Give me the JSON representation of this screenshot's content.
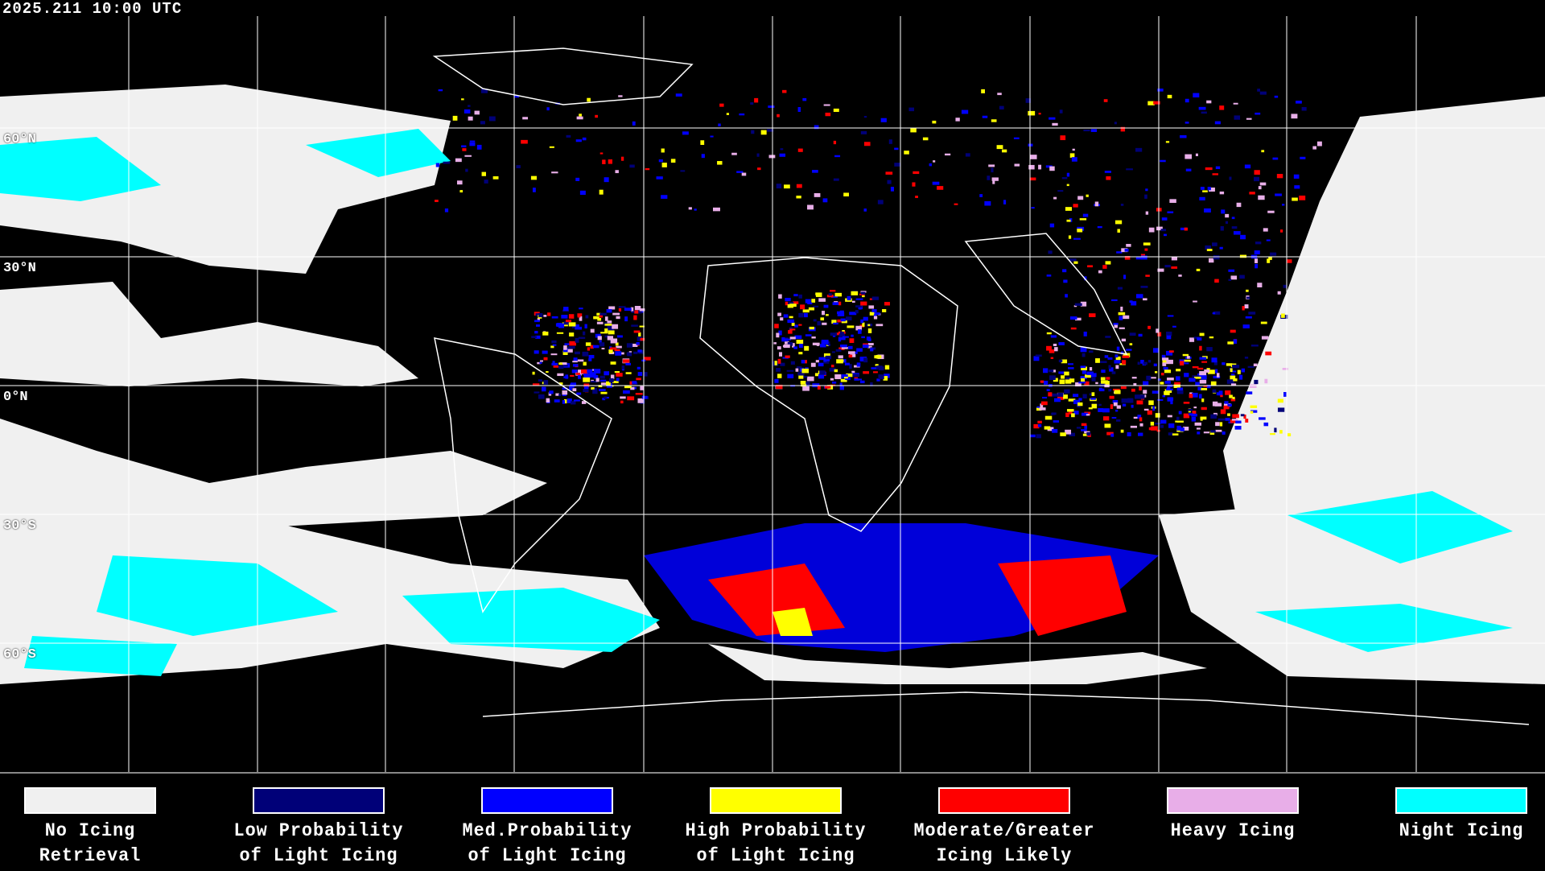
{
  "header": {
    "timestamp": "2025.211 10:00 UTC"
  },
  "map": {
    "latitude_labels": [
      "60°N",
      "30°N",
      "0°N",
      "30°S",
      "60°S"
    ],
    "grid": true,
    "background_color": "#000000",
    "coastline_color": "#ffffff"
  },
  "legend": {
    "items": [
      {
        "line1": "No Icing",
        "line2": "Retrieval",
        "color": "#f0f0f0"
      },
      {
        "line1": "Low Probability",
        "line2": "of Light Icing",
        "color": "#000078"
      },
      {
        "line1": "Med.Probability",
        "line2": "of Light Icing",
        "color": "#0000ff"
      },
      {
        "line1": "High Probability",
        "line2": "of Light Icing",
        "color": "#ffff00"
      },
      {
        "line1": "Moderate/Greater",
        "line2": "Icing Likely",
        "color": "#ff0000"
      },
      {
        "line1": "Heavy Icing",
        "line2": "",
        "color": "#e8aee8"
      },
      {
        "line1": "Night Icing",
        "line2": "",
        "color": "#00ffff"
      }
    ]
  }
}
